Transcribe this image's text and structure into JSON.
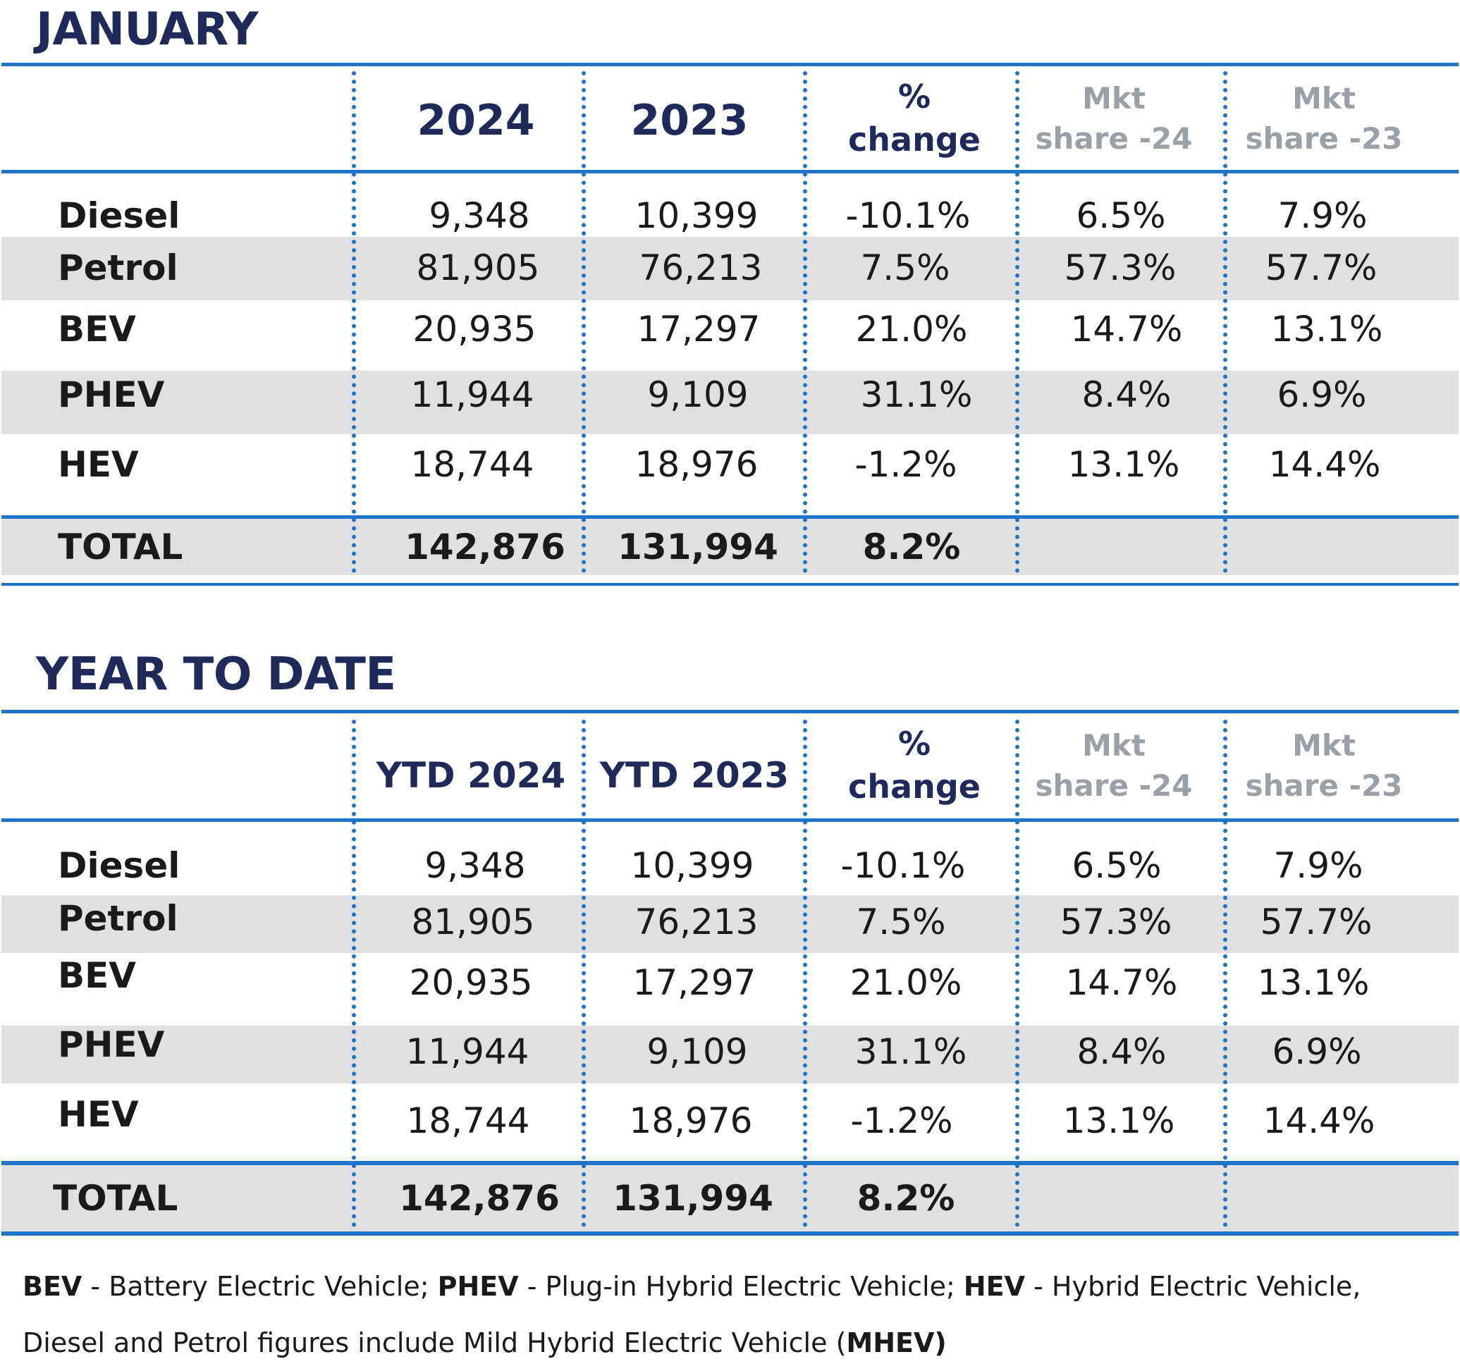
{
  "sections": [
    {
      "title": "JANUARY",
      "headers": {
        "col1": "2024",
        "col2": "2023",
        "pct": [
          "%",
          "change"
        ],
        "mkt24": [
          "Mkt",
          "share -24"
        ],
        "mkt23": [
          "Mkt",
          "share -23"
        ]
      },
      "rows": [
        {
          "label": "Diesel",
          "v2024": "9,348",
          "v2023": "10,399",
          "pct": "-10.1%",
          "mkt24": "6.5%",
          "mkt23": "7.9%"
        },
        {
          "label": "Petrol",
          "v2024": "81,905",
          "v2023": "76,213",
          "pct": "7.5%",
          "mkt24": "57.3%",
          "mkt23": "57.7%"
        },
        {
          "label": "BEV",
          "v2024": "20,935",
          "v2023": "17,297",
          "pct": "21.0%",
          "mkt24": "14.7%",
          "mkt23": "13.1%"
        },
        {
          "label": "PHEV",
          "v2024": "11,944",
          "v2023": "9,109",
          "pct": "31.1%",
          "mkt24": "8.4%",
          "mkt23": "6.9%"
        },
        {
          "label": "HEV",
          "v2024": "18,744",
          "v2023": "18,976",
          "pct": "-1.2%",
          "mkt24": "13.1%",
          "mkt23": "14.4%"
        }
      ],
      "total": {
        "label": "TOTAL",
        "v2024": "142,876",
        "v2023": "131,994",
        "pct": "8.2%"
      }
    },
    {
      "title": "YEAR TO DATE",
      "headers": {
        "col1": "YTD 2024",
        "col2": "YTD 2023",
        "pct": [
          "%",
          "change"
        ],
        "mkt24": [
          "Mkt",
          "share -24"
        ],
        "mkt23": [
          "Mkt",
          "share -23"
        ]
      },
      "rows": [
        {
          "label": "Diesel",
          "v2024": "9,348",
          "v2023": "10,399",
          "pct": "-10.1%",
          "mkt24": "6.5%",
          "mkt23": "7.9%"
        },
        {
          "label": "Petrol",
          "v2024": "81,905",
          "v2023": "76,213",
          "pct": "7.5%",
          "mkt24": "57.3%",
          "mkt23": "57.7%"
        },
        {
          "label": "BEV",
          "v2024": "20,935",
          "v2023": "17,297",
          "pct": "21.0%",
          "mkt24": "14.7%",
          "mkt23": "13.1%"
        },
        {
          "label": "PHEV",
          "v2024": "11,944",
          "v2023": "9,109",
          "pct": "31.1%",
          "mkt24": "8.4%",
          "mkt23": "6.9%"
        },
        {
          "label": "HEV",
          "v2024": "18,744",
          "v2023": "18,976",
          "pct": "-1.2%",
          "mkt24": "13.1%",
          "mkt23": "14.4%"
        }
      ],
      "total": {
        "label": "TOTAL",
        "v2024": "142,876",
        "v2023": "131,994",
        "pct": "8.2%"
      }
    }
  ],
  "footnote": {
    "bev_abbr": "BEV",
    "bev_text": " - Battery Electric Vehicle; ",
    "phev_abbr": "PHEV",
    "phev_text": " - Plug-in Hybrid Electric Vehicle; ",
    "hev_abbr": "HEV",
    "hev_text": " - Hybrid Electric Vehicle,",
    "line2_text": "Diesel and Petrol figures include Mild Hybrid Electric Vehicle (",
    "mhev_abbr": "MHEV)"
  },
  "colors": {
    "rule": "#1f74c8",
    "title": "#1f2a5a",
    "band": "#e0e0e0",
    "muted_header": "#9aa0a8"
  }
}
